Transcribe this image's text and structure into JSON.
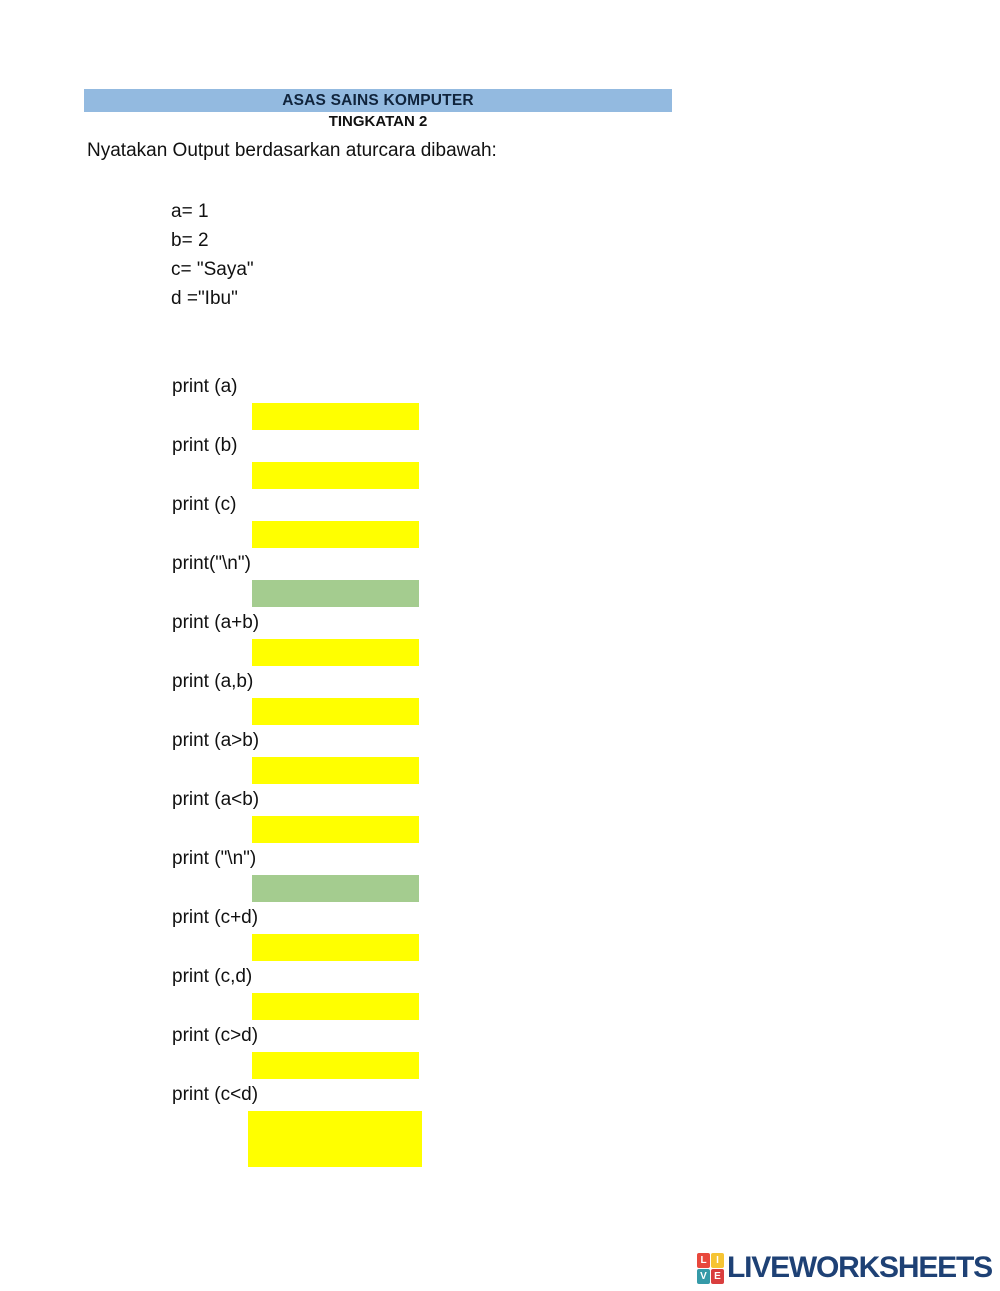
{
  "header": {
    "title": "ASAS  SAINS KOMPUTER",
    "subtitle": "TINGKATAN 2"
  },
  "instruction": "Nyatakan Output berdasarkan aturcara dibawah:",
  "code_lines": [
    "a= 1",
    "b= 2",
    "c= \"Saya\"",
    "d =\"Ibu\""
  ],
  "items": [
    {
      "label": "print (a)",
      "box_color": "yellow"
    },
    {
      "label": "print (b)",
      "box_color": "yellow"
    },
    {
      "label": "print (c)",
      "box_color": "yellow"
    },
    {
      "label": "print(\"\\n\")",
      "box_color": "green"
    },
    {
      "label": "print (a+b)",
      "box_color": "yellow"
    },
    {
      "label": "print (a,b)",
      "box_color": "yellow"
    },
    {
      "label": "print (a>b)",
      "box_color": "yellow"
    },
    {
      "label": "print (a<b)",
      "box_color": "yellow"
    },
    {
      "label": "print (\"\\n\")",
      "box_color": "green"
    },
    {
      "label": "print (c+d)",
      "box_color": "yellow"
    },
    {
      "label": "print (c,d)",
      "box_color": "yellow"
    },
    {
      "label": "print (c>d)",
      "box_color": "yellow"
    },
    {
      "label": "print (c<d)",
      "box_color": "yellow",
      "tall": true
    }
  ],
  "colors": {
    "header_bar": "#93BAE0",
    "answer_yellow": "#FFFF00",
    "answer_green": "#A4CC8F",
    "logo_text": "#1E4175"
  },
  "footer": {
    "brand": "LIVEWORKSHEETS",
    "logo_tiles": [
      {
        "letter": "L",
        "color": "#E8483C"
      },
      {
        "letter": "I",
        "color": "#F6C433"
      },
      {
        "letter": "V",
        "color": "#359AA8"
      },
      {
        "letter": "E",
        "color": "#D93E3E"
      }
    ]
  }
}
